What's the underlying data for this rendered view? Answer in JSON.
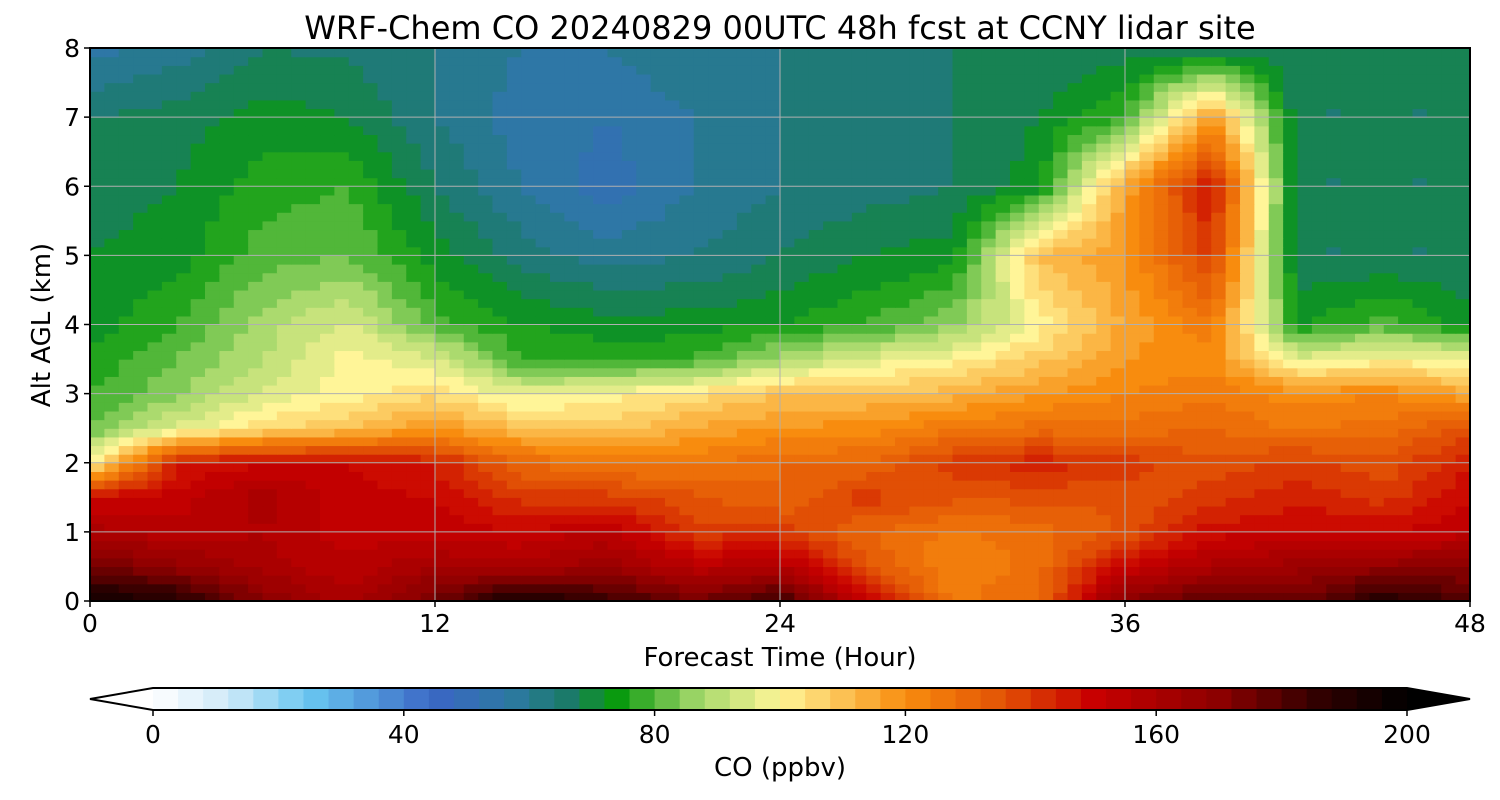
{
  "chart_data": {
    "type": "heatmap",
    "title": "WRF-Chem CO  20240829 00UTC 48h fcst at CCNY lidar site",
    "xlabel": "Forecast Time (Hour)",
    "ylabel": "Alt AGL (km)",
    "xlim": [
      0,
      48
    ],
    "ylim": [
      0,
      8
    ],
    "xticks": [
      0,
      12,
      24,
      36,
      48
    ],
    "yticks": [
      0,
      1,
      2,
      3,
      4,
      5,
      6,
      7,
      8
    ],
    "grid": true,
    "colorbar": {
      "label": "CO  (ppbv)",
      "min": 0,
      "max": 200,
      "ticks": [
        0,
        40,
        80,
        120,
        160,
        200
      ],
      "extend": "both",
      "stops": [
        {
          "value": 0,
          "color": "#ffffff"
        },
        {
          "value": 12,
          "color": "#cfe9f8"
        },
        {
          "value": 25,
          "color": "#68c6f0"
        },
        {
          "value": 45,
          "color": "#3a66c4"
        },
        {
          "value": 57,
          "color": "#2d79a3"
        },
        {
          "value": 66,
          "color": "#1b7a6a"
        },
        {
          "value": 74,
          "color": "#0a9a0f"
        },
        {
          "value": 87,
          "color": "#a4d86b"
        },
        {
          "value": 100,
          "color": "#fff598"
        },
        {
          "value": 120,
          "color": "#f88c0e"
        },
        {
          "value": 135,
          "color": "#e35505"
        },
        {
          "value": 150,
          "color": "#c80000"
        },
        {
          "value": 170,
          "color": "#8c0000"
        },
        {
          "value": 185,
          "color": "#350000"
        },
        {
          "value": 200,
          "color": "#000000"
        }
      ]
    },
    "times_h": [
      0,
      3,
      6,
      9,
      12,
      15,
      18,
      21,
      24,
      27,
      30,
      33,
      36,
      39,
      42,
      45,
      48
    ],
    "altitudes_km": [
      0,
      0.5,
      1,
      1.5,
      2,
      2.5,
      3,
      3.5,
      4,
      5,
      6,
      7,
      8
    ],
    "values": [
      [
        195,
        190,
        170,
        160,
        175,
        195,
        185,
        175,
        185,
        150,
        125,
        130,
        170,
        180,
        175,
        190,
        180
      ],
      [
        175,
        168,
        160,
        155,
        162,
        160,
        165,
        155,
        158,
        135,
        122,
        128,
        150,
        160,
        165,
        168,
        170
      ],
      [
        160,
        155,
        158,
        152,
        152,
        150,
        155,
        140,
        140,
        130,
        125,
        128,
        135,
        148,
        150,
        150,
        152
      ],
      [
        150,
        152,
        160,
        152,
        150,
        140,
        140,
        135,
        130,
        140,
        135,
        135,
        135,
        140,
        145,
        140,
        150
      ],
      [
        100,
        145,
        150,
        150,
        145,
        130,
        125,
        125,
        130,
        130,
        140,
        145,
        140,
        135,
        140,
        135,
        145
      ],
      [
        82,
        95,
        105,
        110,
        118,
        110,
        108,
        115,
        118,
        120,
        125,
        128,
        128,
        130,
        125,
        128,
        135
      ],
      [
        78,
        85,
        95,
        100,
        105,
        96,
        100,
        104,
        110,
        110,
        112,
        118,
        122,
        125,
        120,
        122,
        115
      ],
      [
        75,
        82,
        90,
        100,
        95,
        78,
        76,
        78,
        88,
        95,
        100,
        108,
        118,
        120,
        96,
        100,
        98
      ],
      [
        72,
        78,
        88,
        95,
        80,
        74,
        72,
        72,
        74,
        78,
        85,
        100,
        115,
        125,
        74,
        80,
        72
      ],
      [
        70,
        72,
        80,
        82,
        72,
        64,
        60,
        62,
        66,
        70,
        72,
        110,
        118,
        140,
        66,
        66,
        66
      ],
      [
        68,
        70,
        76,
        78,
        66,
        58,
        52,
        58,
        62,
        64,
        66,
        72,
        115,
        148,
        66,
        66,
        66
      ],
      [
        66,
        68,
        72,
        70,
        62,
        56,
        54,
        58,
        62,
        64,
        66,
        70,
        78,
        118,
        66,
        66,
        66
      ],
      [
        56,
        60,
        66,
        65,
        62,
        58,
        58,
        62,
        62,
        64,
        66,
        66,
        68,
        66,
        66,
        66,
        66
      ]
    ]
  }
}
